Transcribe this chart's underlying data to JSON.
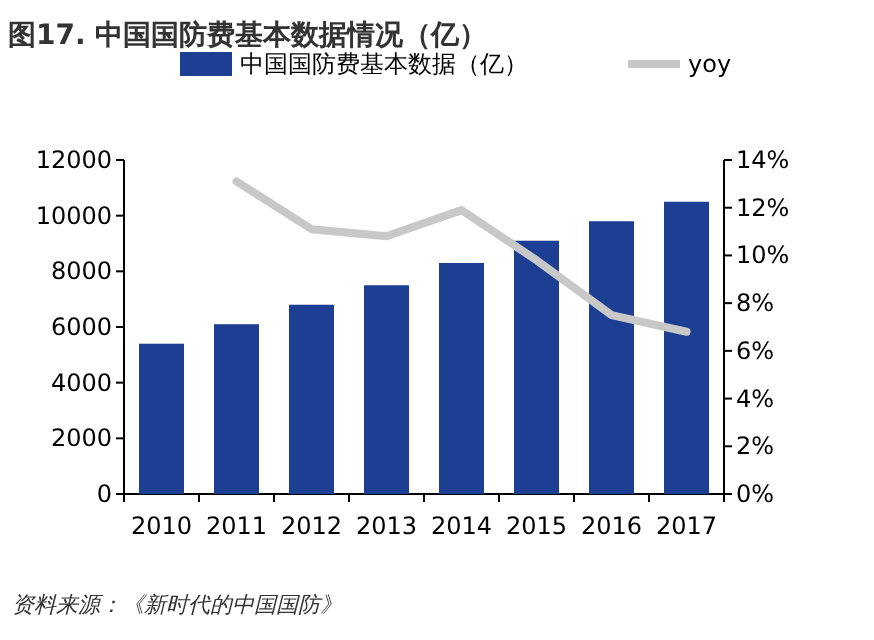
{
  "chart_data": {
    "type": "bar",
    "title": "图17. 中国国防费基本数据情况（亿）",
    "annotations": [
      "资料来源：《新时代的中国国防》"
    ],
    "categories": [
      "2010",
      "2011",
      "2012",
      "2013",
      "2014",
      "2015",
      "2016",
      "2017"
    ],
    "series": [
      {
        "name": "中国国防费基本数据（亿）",
        "color": "#1c3f94",
        "values": [
          5400,
          6100,
          6800,
          7500,
          8300,
          9100,
          9800,
          10500
        ]
      },
      {
        "name": "yoy",
        "type": "line",
        "axis": "y2",
        "color": "#c8c8c8",
        "values": [
          null,
          13.1,
          11.1,
          10.8,
          11.9,
          9.8,
          7.5,
          6.8
        ]
      }
    ],
    "ylim": [
      0,
      12000
    ],
    "yticks": [
      0,
      2000,
      4000,
      6000,
      8000,
      10000,
      12000
    ],
    "y2lim": [
      0,
      14
    ],
    "y2ticks": [
      {
        "value": 0,
        "label": "0%"
      },
      {
        "value": 2,
        "label": "2%"
      },
      {
        "value": 4,
        "label": "4%"
      },
      {
        "value": 6,
        "label": "6%"
      },
      {
        "value": 8,
        "label": "8%"
      },
      {
        "value": 10,
        "label": "10%"
      },
      {
        "value": 12,
        "label": "12%"
      },
      {
        "value": 14,
        "label": "14%"
      }
    ],
    "legend": "top",
    "grid": false
  }
}
